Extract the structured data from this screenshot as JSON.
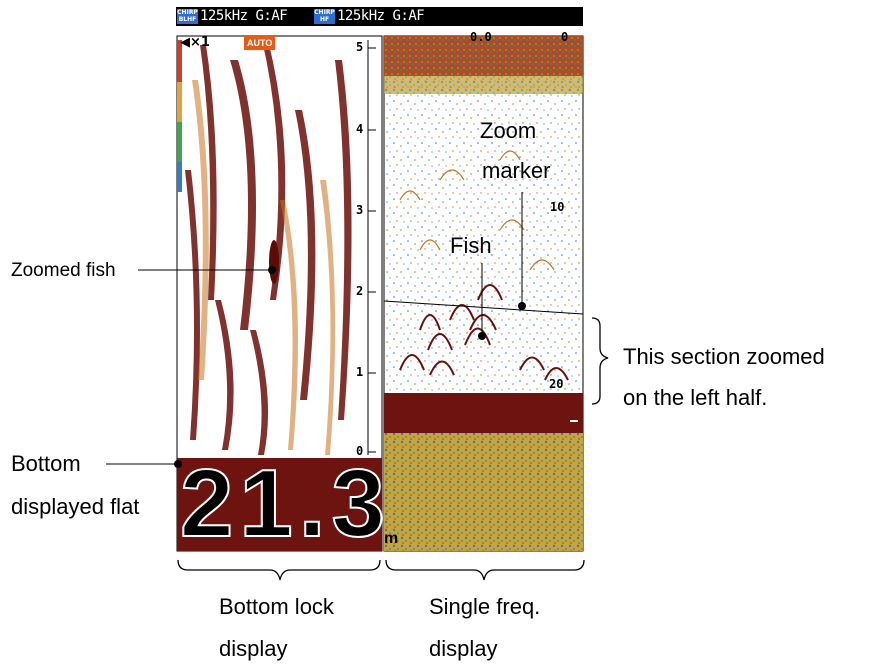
{
  "header": {
    "left_badge": "CHIRP BLHF",
    "left_text": "125kHz G:AF",
    "right_badge": "CHIRP HF",
    "right_text": "125kHz G:AF"
  },
  "left_panel": {
    "zoom_indicator": "◀×1",
    "auto_badge": "AUTO",
    "scale_ticks": [
      "5",
      "4",
      "3",
      "2",
      "1",
      "0"
    ],
    "depth_value": "21.3",
    "depth_unit": "m"
  },
  "right_panel": {
    "top_readout": "0.0",
    "top_right_readout": "0",
    "depth_ticks": [
      "10",
      "20"
    ]
  },
  "callouts": {
    "zoomed_fish": "Zoomed fish",
    "bottom_line1": "Bottom",
    "bottom_line2": "displayed flat",
    "zoom_marker_line1": "Zoom",
    "zoom_marker_line2": "marker",
    "fish": "Fish",
    "section_line1": "This section zoomed",
    "section_line2": "on the left half.",
    "bottom_lock_line1": "Bottom lock",
    "bottom_lock_line2": "display",
    "single_freq_line1": "Single freq.",
    "single_freq_line2": "display"
  },
  "colors": {
    "echo_strong": "#6b0f0a",
    "echo_mid": "#c8741f",
    "echo_weak": "#2f7fc4",
    "background": "#ffffff",
    "bottom_fill": "#6e1410"
  }
}
